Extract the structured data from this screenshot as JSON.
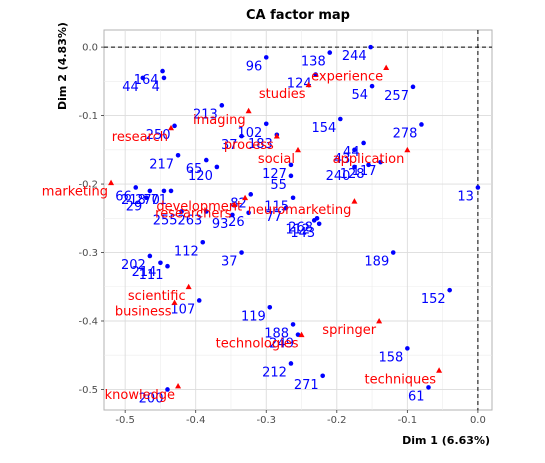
{
  "chart_data": {
    "type": "scatter",
    "title": "CA factor map",
    "xlabel": "Dim 1 (6.63%)",
    "ylabel": "Dim 2 (4.83%)",
    "xlim": [
      -0.53,
      0.02
    ],
    "ylim": [
      -0.53,
      0.025
    ],
    "grid": true,
    "xticks": [
      -0.5,
      -0.4,
      -0.3,
      -0.2,
      -0.1,
      0.0
    ],
    "xtick_labels": [
      "-0.5",
      "-0.4",
      "-0.3",
      "-0.2",
      "-0.1",
      "0.0"
    ],
    "yticks": [
      0.0,
      -0.1,
      -0.2,
      -0.3,
      -0.4,
      -0.5
    ],
    "ytick_labels": [
      "0.0",
      "-0.1",
      "-0.2",
      "-0.3",
      "-0.4",
      "-0.5"
    ],
    "reference_lines": {
      "x": 0,
      "y": 0,
      "style": "dashed"
    },
    "colors": {
      "rows": "#0000ff",
      "columns": "#ff0000"
    },
    "rows": [
      {
        "label": "164",
        "x": -0.447,
        "y": -0.035
      },
      {
        "label": "44",
        "x": -0.475,
        "y": -0.045
      },
      {
        "label": "4",
        "x": -0.445,
        "y": -0.045
      },
      {
        "label": "96",
        "x": -0.3,
        "y": -0.015
      },
      {
        "label": "138",
        "x": -0.21,
        "y": -0.008
      },
      {
        "label": "124",
        "x": -0.23,
        "y": -0.04
      },
      {
        "label": "244",
        "x": -0.152,
        "y": 0.0
      },
      {
        "label": "54",
        "x": -0.15,
        "y": -0.057
      },
      {
        "label": "257",
        "x": -0.092,
        "y": -0.058
      },
      {
        "label": "213",
        "x": -0.363,
        "y": -0.085
      },
      {
        "label": "250",
        "x": -0.43,
        "y": -0.115
      },
      {
        "label": "102",
        "x": -0.3,
        "y": -0.112
      },
      {
        "label": "154",
        "x": -0.195,
        "y": -0.105
      },
      {
        "label": "278",
        "x": -0.08,
        "y": -0.113
      },
      {
        "label": "183",
        "x": -0.285,
        "y": -0.128
      },
      {
        "label": "37",
        "x": -0.335,
        "y": -0.13
      },
      {
        "label": "44",
        "x": -0.162,
        "y": -0.14
      },
      {
        "label": "43",
        "x": -0.175,
        "y": -0.15
      },
      {
        "label": "217",
        "x": -0.425,
        "y": -0.158
      },
      {
        "label": "65",
        "x": -0.385,
        "y": -0.165
      },
      {
        "label": "120",
        "x": -0.37,
        "y": -0.175
      },
      {
        "label": "240",
        "x": -0.175,
        "y": -0.175
      },
      {
        "label": "128",
        "x": -0.155,
        "y": -0.172
      },
      {
        "label": "117",
        "x": -0.138,
        "y": -0.168
      },
      {
        "label": "127",
        "x": -0.265,
        "y": -0.172
      },
      {
        "label": "55",
        "x": -0.265,
        "y": -0.188
      },
      {
        "label": "13",
        "x": 0.0,
        "y": -0.205
      },
      {
        "label": "66",
        "x": -0.485,
        "y": -0.205
      },
      {
        "label": "218",
        "x": -0.465,
        "y": -0.21
      },
      {
        "label": "71",
        "x": -0.435,
        "y": -0.21
      },
      {
        "label": "270",
        "x": -0.445,
        "y": -0.21
      },
      {
        "label": "29",
        "x": -0.47,
        "y": -0.22
      },
      {
        "label": "82",
        "x": -0.322,
        "y": -0.215
      },
      {
        "label": "115",
        "x": -0.262,
        "y": -0.22
      },
      {
        "label": "77",
        "x": -0.272,
        "y": -0.235
      },
      {
        "label": "263",
        "x": -0.385,
        "y": -0.24
      },
      {
        "label": "26",
        "x": -0.325,
        "y": -0.242
      },
      {
        "label": "93",
        "x": -0.348,
        "y": -0.245
      },
      {
        "label": "255",
        "x": -0.42,
        "y": -0.24
      },
      {
        "label": "112",
        "x": -0.232,
        "y": -0.253
      },
      {
        "label": "268",
        "x": -0.228,
        "y": -0.25
      },
      {
        "label": "143",
        "x": -0.225,
        "y": -0.258
      },
      {
        "label": "112",
        "x": -0.39,
        "y": -0.285
      },
      {
        "label": "37",
        "x": -0.335,
        "y": -0.3
      },
      {
        "label": "202",
        "x": -0.465,
        "y": -0.305
      },
      {
        "label": "214",
        "x": -0.45,
        "y": -0.315
      },
      {
        "label": "111",
        "x": -0.44,
        "y": -0.32
      },
      {
        "label": "189",
        "x": -0.12,
        "y": -0.3
      },
      {
        "label": "152",
        "x": -0.04,
        "y": -0.355
      },
      {
        "label": "107",
        "x": -0.395,
        "y": -0.37
      },
      {
        "label": "119",
        "x": -0.295,
        "y": -0.38
      },
      {
        "label": "188",
        "x": -0.262,
        "y": -0.405
      },
      {
        "label": "249",
        "x": -0.255,
        "y": -0.42
      },
      {
        "label": "158",
        "x": -0.1,
        "y": -0.44
      },
      {
        "label": "212",
        "x": -0.265,
        "y": -0.462
      },
      {
        "label": "271",
        "x": -0.22,
        "y": -0.48
      },
      {
        "label": "61",
        "x": -0.07,
        "y": -0.497
      },
      {
        "label": "200",
        "x": -0.44,
        "y": -0.5
      }
    ],
    "columns": [
      {
        "label": "experience",
        "x": -0.13,
        "y": -0.03
      },
      {
        "label": "studies",
        "x": -0.24,
        "y": -0.055
      },
      {
        "label": "imaging",
        "x": -0.325,
        "y": -0.093
      },
      {
        "label": "research",
        "x": -0.435,
        "y": -0.118
      },
      {
        "label": "process",
        "x": -0.285,
        "y": -0.13
      },
      {
        "label": "social",
        "x": -0.255,
        "y": -0.15
      },
      {
        "label": "application",
        "x": -0.1,
        "y": -0.15
      },
      {
        "label": "marketing",
        "x": -0.52,
        "y": -0.198
      },
      {
        "label": "development",
        "x": -0.33,
        "y": -0.22
      },
      {
        "label": "researchers",
        "x": -0.345,
        "y": -0.23
      },
      {
        "label": "neuromarketing",
        "x": -0.175,
        "y": -0.225
      },
      {
        "label": "scientific",
        "x": -0.41,
        "y": -0.35
      },
      {
        "label": "business",
        "x": -0.43,
        "y": -0.373
      },
      {
        "label": "technologies",
        "x": -0.25,
        "y": -0.42
      },
      {
        "label": "springer",
        "x": -0.14,
        "y": -0.4
      },
      {
        "label": "techniques",
        "x": -0.055,
        "y": -0.472
      },
      {
        "label": "knowledge",
        "x": -0.425,
        "y": -0.495
      }
    ]
  }
}
